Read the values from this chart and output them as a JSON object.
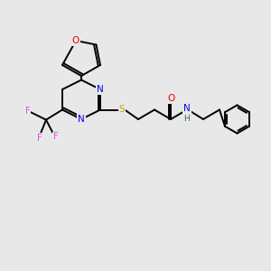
{
  "background_color": "#e8e8e8",
  "atom_colors": {
    "C": "#000000",
    "N": "#0000ee",
    "O": "#ee0000",
    "S": "#bbaa00",
    "F": "#ee44ee",
    "H": "#336666"
  },
  "bond_color": "#000000",
  "bond_width": 1.4,
  "figsize": [
    3.0,
    3.0
  ],
  "dpi": 100,
  "xlim": [
    0,
    10
  ],
  "ylim": [
    0,
    10
  ]
}
